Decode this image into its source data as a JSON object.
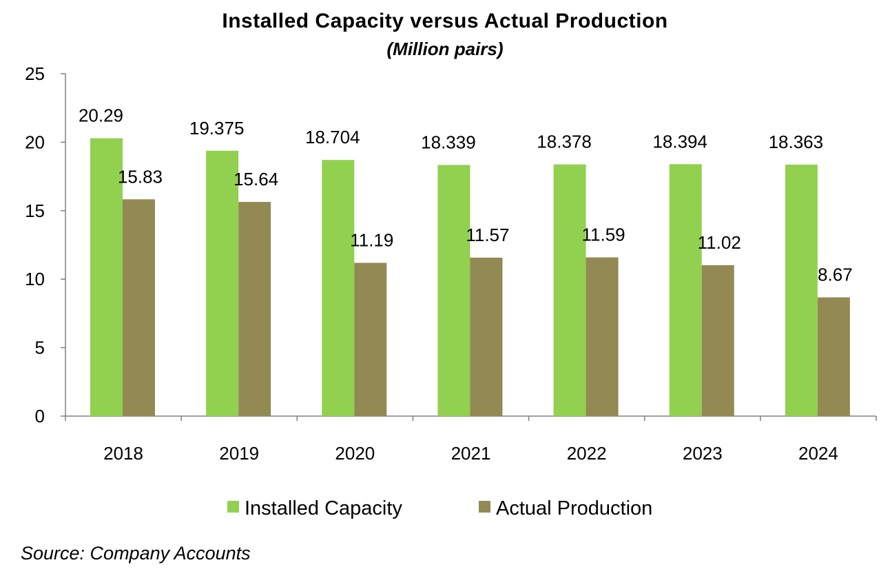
{
  "chart_data": {
    "type": "bar",
    "title": "Installed Capacity versus Actual Production",
    "subtitle": "(Million pairs)",
    "xlabel": "",
    "ylabel": "",
    "ylim": [
      0,
      25
    ],
    "yticks": [
      0,
      5,
      10,
      15,
      20,
      25
    ],
    "grid": false,
    "legend_position": "bottom",
    "categories": [
      "2018",
      "2019",
      "2020",
      "2021",
      "2022",
      "2023",
      "2024"
    ],
    "series": [
      {
        "name": "Installed Capacity",
        "color": "#92d050",
        "values": [
          20.29,
          19.375,
          18.704,
          18.339,
          18.378,
          18.394,
          18.363
        ],
        "labels": [
          "20.29",
          "19.375",
          "18.704",
          "18.339",
          "18.378",
          "18.394",
          "18.363"
        ]
      },
      {
        "name": "Actual Production",
        "color": "#938953",
        "values": [
          15.83,
          15.64,
          11.19,
          11.57,
          11.59,
          11.02,
          8.67
        ],
        "labels": [
          "15.83",
          "15.64",
          "11.19",
          "11.57",
          "11.59",
          "11.02",
          "8.67"
        ]
      }
    ],
    "source": "Source: Company Accounts"
  }
}
